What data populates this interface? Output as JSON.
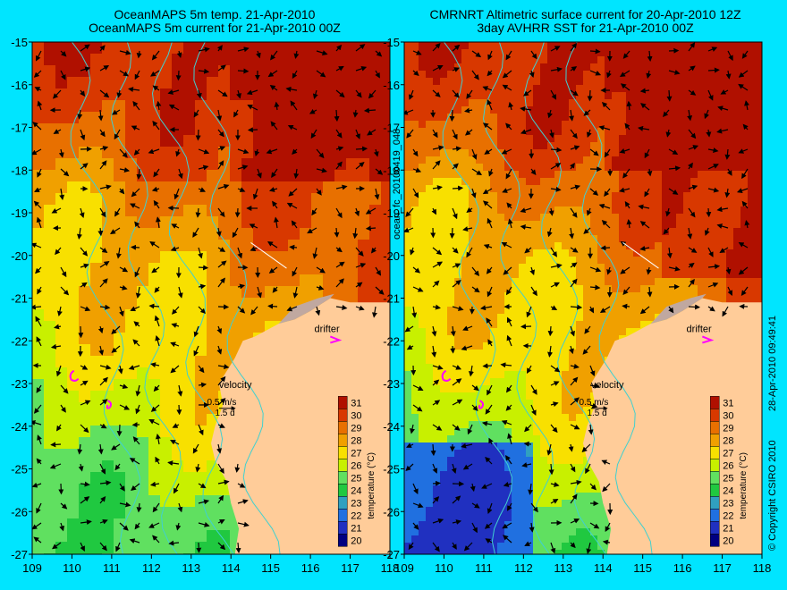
{
  "left_panel": {
    "title_line1": "OceanMAPS 5m temp. 21-Apr-2010",
    "title_line2": "OceanMAPS 5m current for 21-Apr-2010 00Z"
  },
  "right_panel": {
    "title_line1": "CMRNRT Altimetric surface current for 20-Apr-2010 12Z",
    "title_line2": "3day AVHRR SST for 21-Apr-2010 00Z"
  },
  "axes": {
    "x_ticks": [
      "109",
      "110",
      "111",
      "112",
      "113",
      "114",
      "115",
      "116",
      "117",
      "118"
    ],
    "y_ticks": [
      "-15",
      "-16",
      "-17",
      "-18",
      "-19",
      "-20",
      "-21",
      "-22",
      "-23",
      "-24",
      "-25",
      "-26",
      "-27"
    ],
    "lon_range": [
      109,
      118
    ],
    "lat_range": [
      -27,
      -15
    ]
  },
  "legend": {
    "title": "temperature (°C)",
    "labels": [
      "31",
      "30",
      "29",
      "28",
      "27",
      "26",
      "25",
      "24",
      "23",
      "22",
      "21",
      "20"
    ],
    "colors": [
      "#b01000",
      "#d83800",
      "#e87000",
      "#f0a000",
      "#f8e000",
      "#c8f000",
      "#60e060",
      "#20c840",
      "#30a0c0",
      "#2070e0",
      "#2030c0",
      "#000080"
    ]
  },
  "annotations": {
    "drifter": "drifter",
    "velocity": "velocity",
    "velocity_scale": "0.5 m/s",
    "velocity_time": "1.5 d"
  },
  "side_labels": {
    "run_id": "ocean_fc_20100419_048",
    "timestamp": "28-Apr-2010 09:49:41",
    "copyright": "© Copyright CSIRO 2010"
  },
  "colors": {
    "land": "#ffcc99",
    "coast_grey": "#c0a8a0",
    "border": "#00e5ff",
    "vector": "#000000",
    "contour": "#40d0d0",
    "drifter_track": "#ff00ff"
  }
}
